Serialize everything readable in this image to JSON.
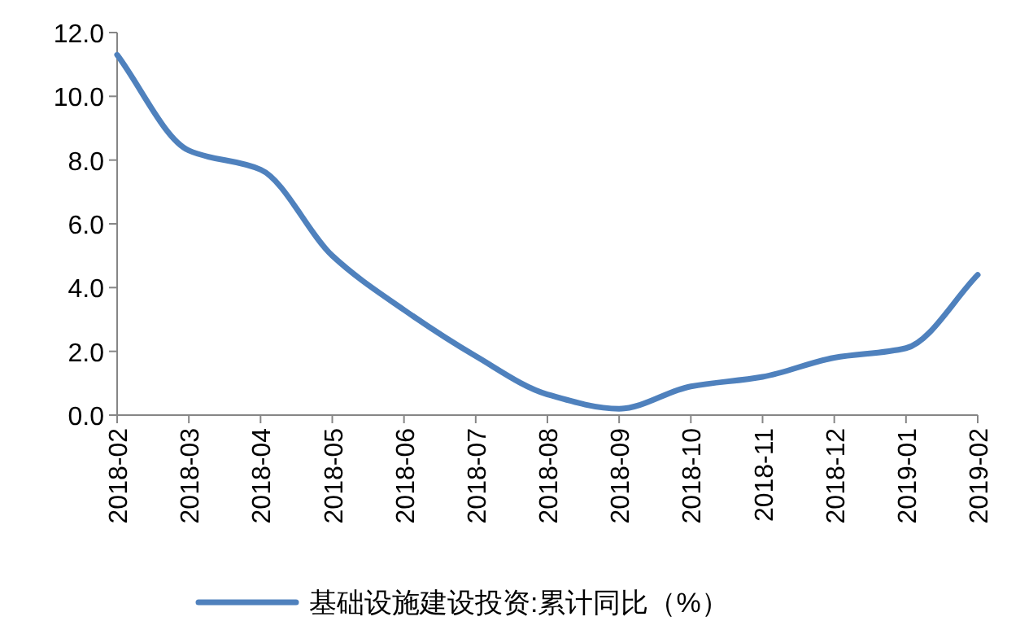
{
  "chart_data": {
    "type": "line",
    "categories": [
      "2018-02",
      "2018-03",
      "2018-04",
      "2018-05",
      "2018-06",
      "2018-07",
      "2018-08",
      "2018-09",
      "2018-10",
      "2018-11",
      "2018-12",
      "2019-01",
      "2019-02"
    ],
    "series": [
      {
        "name": "基础设施建设投资:累计同比（%）",
        "color": "#4f81bd",
        "values": [
          11.3,
          8.3,
          7.7,
          5.0,
          3.3,
          1.85,
          0.65,
          0.2,
          0.9,
          1.2,
          1.8,
          2.1,
          4.4
        ]
      }
    ],
    "ylim": [
      0,
      12
    ],
    "yticks": [
      {
        "value": 0,
        "label": "0.0"
      },
      {
        "value": 2,
        "label": "2.0"
      },
      {
        "value": 4,
        "label": "4.0"
      },
      {
        "value": 6,
        "label": "6.0"
      },
      {
        "value": 8,
        "label": "8.0"
      },
      {
        "value": 10,
        "label": "10.0"
      },
      {
        "value": 12,
        "label": "12.0"
      }
    ],
    "grid": false,
    "legend": "bottom",
    "marker": "none",
    "line_style": "solid"
  }
}
